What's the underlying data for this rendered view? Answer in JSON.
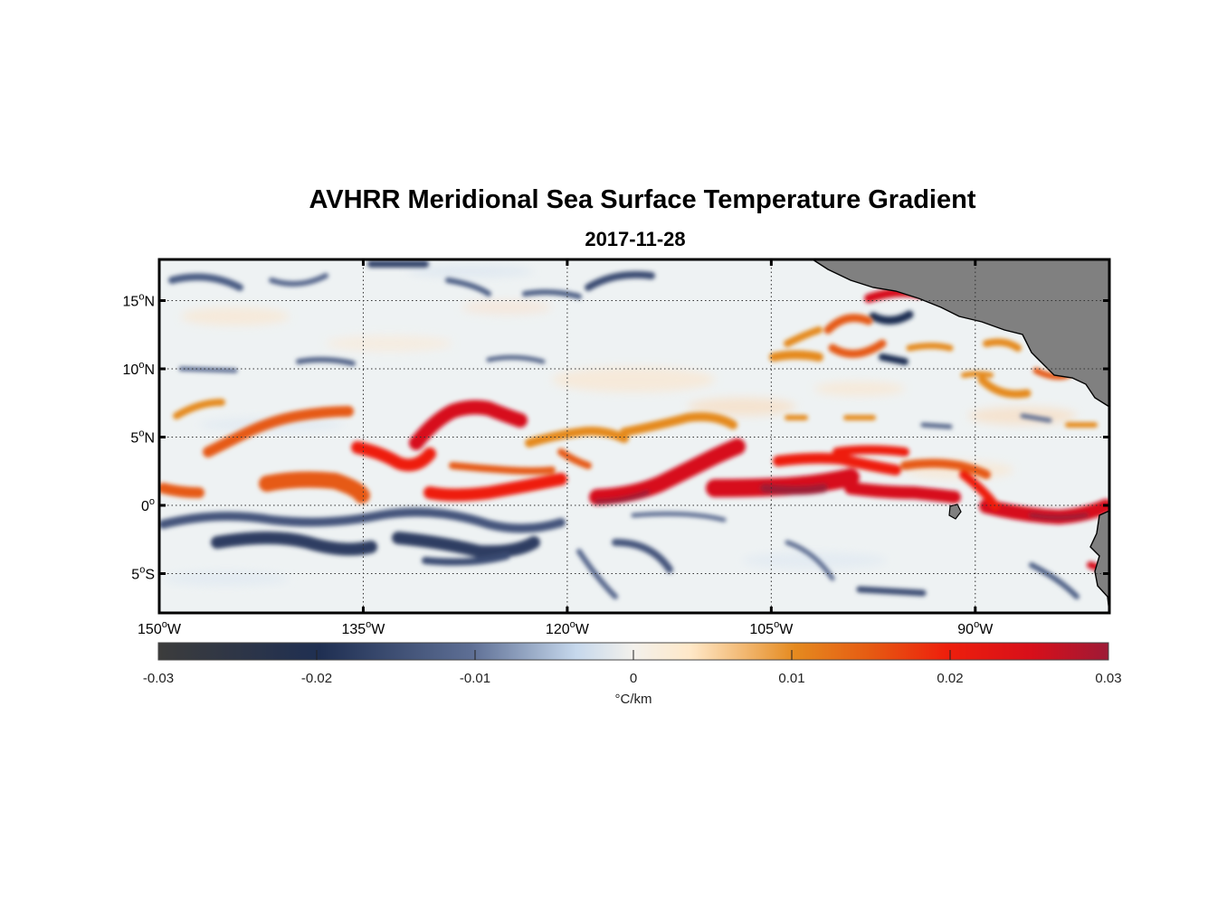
{
  "title": "AVHRR Meridional Sea Surface Temperature Gradient",
  "subtitle": "2017-11-28",
  "map": {
    "lat_labels": [
      {
        "value": 15,
        "label": "15",
        "hemi": "N"
      },
      {
        "value": 10,
        "label": "10",
        "hemi": "N"
      },
      {
        "value": 5,
        "label": "5",
        "hemi": "N"
      },
      {
        "value": 0,
        "label": "0",
        "hemi": ""
      },
      {
        "value": -5,
        "label": "5",
        "hemi": "S"
      }
    ],
    "lon_labels": [
      {
        "value": -150,
        "label": "150",
        "hemi": "W"
      },
      {
        "value": -135,
        "label": "135",
        "hemi": "W"
      },
      {
        "value": -120,
        "label": "120",
        "hemi": "W"
      },
      {
        "value": -105,
        "label": "105",
        "hemi": "W"
      },
      {
        "value": -90,
        "label": "90",
        "hemi": "W"
      }
    ],
    "degree_symbol": "o",
    "land_color": "#808080"
  },
  "colorbar": {
    "ticks": [
      "-0.03",
      "-0.02",
      "-0.01",
      "0",
      "0.01",
      "0.02",
      "0.03"
    ],
    "unit": "°C/km",
    "colors": [
      "#3c3c3c",
      "#1f2f52",
      "#5e6f95",
      "#c6d8ec",
      "#f3f1ec",
      "#ffe8c8",
      "#e58a1f",
      "#e65a12",
      "#ee1f0c",
      "#d70f1a",
      "#9e1a36"
    ]
  }
}
